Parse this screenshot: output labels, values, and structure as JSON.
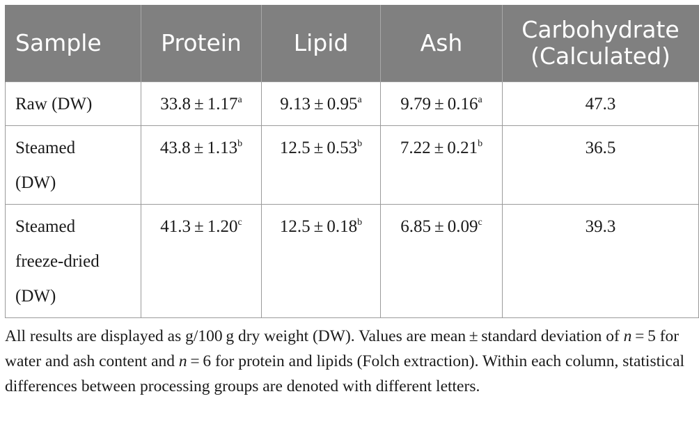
{
  "table": {
    "headers": [
      "Sample",
      "Protein",
      "Lipid",
      "Ash",
      "Carbohydrate",
      "(Calculated)"
    ],
    "rows": [
      {
        "sample": [
          "Raw (DW)"
        ],
        "protein": {
          "value": "33.8",
          "sd": "1.17",
          "letter": "a"
        },
        "lipid": {
          "value": "9.13",
          "sd": "0.95",
          "letter": "a"
        },
        "ash": {
          "value": "9.79",
          "sd": "0.16",
          "letter": "a"
        },
        "carbohydrate": "47.3"
      },
      {
        "sample": [
          "Steamed",
          "(DW)"
        ],
        "protein": {
          "value": "43.8",
          "sd": "1.13",
          "letter": "b"
        },
        "lipid": {
          "value": "12.5",
          "sd": "0.53",
          "letter": "b"
        },
        "ash": {
          "value": "7.22",
          "sd": "0.21",
          "letter": "b"
        },
        "carbohydrate": "36.5"
      },
      {
        "sample": [
          "Steamed",
          "freeze-dried",
          "(DW)"
        ],
        "protein": {
          "value": "41.3",
          "sd": "1.20",
          "letter": "c"
        },
        "lipid": {
          "value": "12.5",
          "sd": "0.18",
          "letter": "b"
        },
        "ash": {
          "value": "6.85",
          "sd": "0.09",
          "letter": "c"
        },
        "carbohydrate": "39.3"
      }
    ],
    "pm_symbol": "±"
  },
  "footnote": {
    "part1": "All results are displayed as g/100 g dry weight (DW). Values are mean ± standard deviation of ",
    "n1": "n",
    "part2": " = 5 for water and ash content and ",
    "n2": "n",
    "part3": " = 6 for protein and lipids (Folch extraction). Within each column, statistical differences between processing groups are denoted with different letters."
  },
  "colors": {
    "header_background": "#808080",
    "header_text": "#ffffff",
    "grid_line": "#9a9a9a"
  }
}
